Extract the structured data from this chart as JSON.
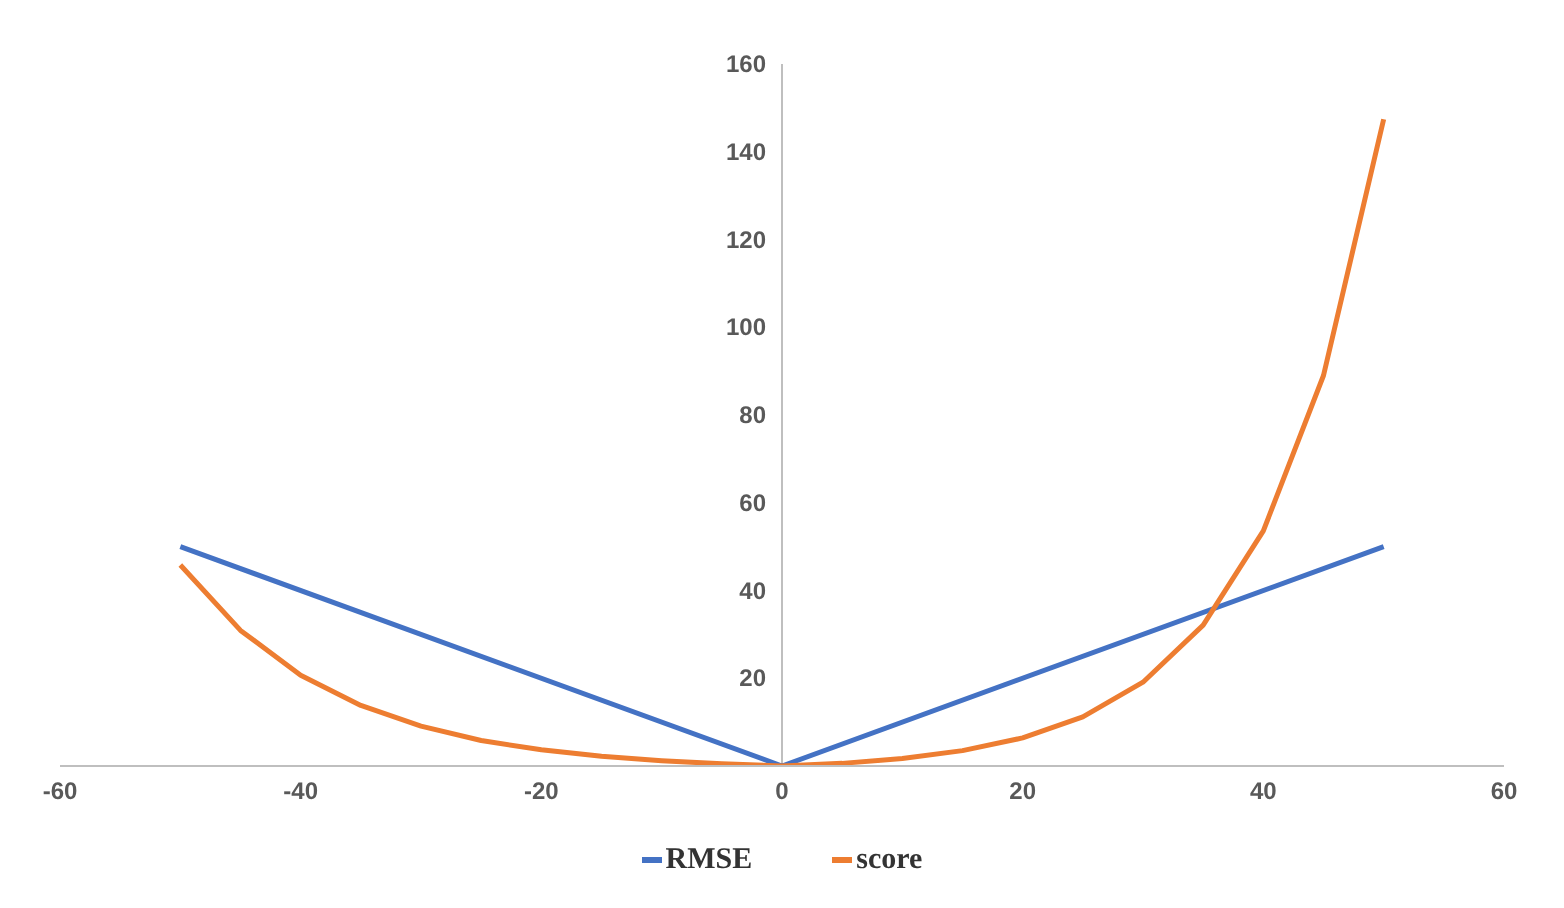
{
  "chart_data": {
    "type": "line",
    "legend": "bottom",
    "grid": false,
    "marker": "none",
    "line_style": "solid",
    "xlim": [
      -60,
      60
    ],
    "xticks": [
      -60,
      -40,
      -20,
      0,
      20,
      40,
      60
    ],
    "ylim": [
      0,
      160
    ],
    "yticks": [
      20,
      40,
      60,
      80,
      100,
      120,
      140,
      160
    ],
    "series": [
      {
        "name": "RMSE",
        "color": "#4472c4",
        "x": [
          -50,
          0,
          50
        ],
        "values": [
          50,
          0,
          50
        ]
      },
      {
        "name": "score",
        "color": "#ed7d31",
        "x": [
          -50,
          -45,
          -40,
          -35,
          -30,
          -25,
          -20,
          -15,
          -10,
          -5,
          0,
          5,
          10,
          15,
          20,
          25,
          30,
          35,
          40,
          45,
          50
        ],
        "values": [
          45.8,
          30.9,
          20.7,
          13.8,
          9.1,
          5.8,
          3.7,
          2.2,
          1.2,
          0.5,
          0,
          0.6,
          1.7,
          3.5,
          6.4,
          11.2,
          19.1,
          32.1,
          53.6,
          89,
          147.4
        ]
      }
    ]
  }
}
